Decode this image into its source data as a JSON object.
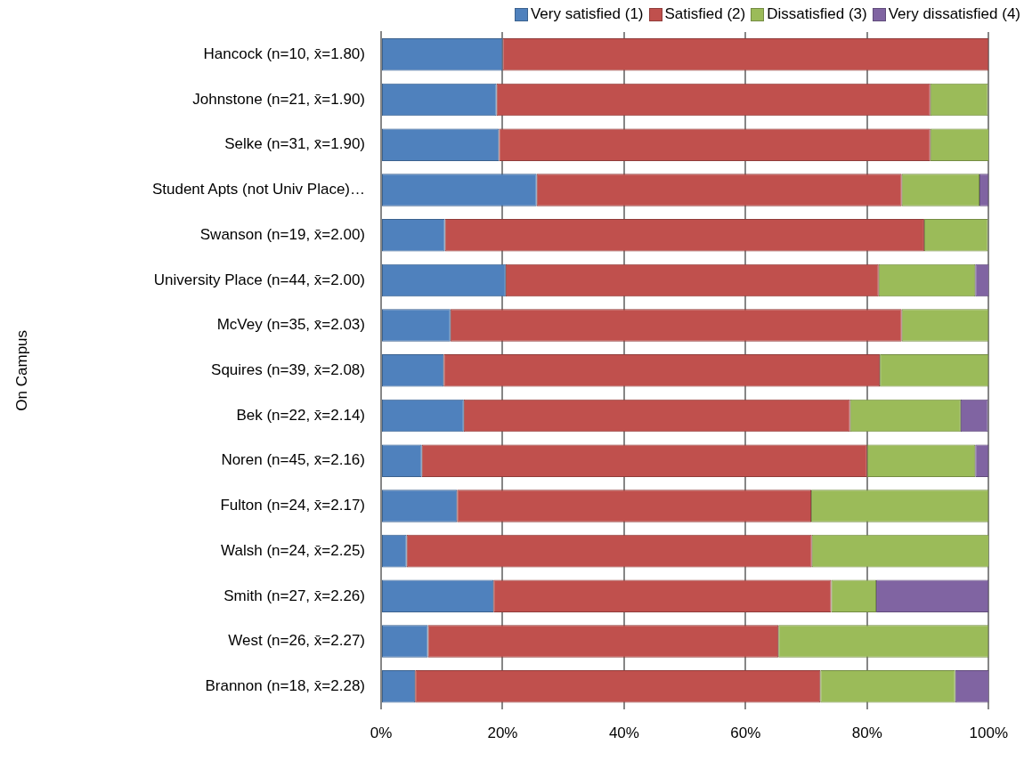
{
  "chart_data": {
    "type": "bar",
    "orientation": "horizontal",
    "stacked": true,
    "annotations": [
      "On Campus"
    ],
    "categories": [
      "Hancock (n=10, x̄=1.80)",
      "Johnstone (n=21, x̄=1.90)",
      "Selke (n=31, x̄=1.90)",
      "Student Apts (not Univ Place)…",
      "Swanson (n=19, x̄=2.00)",
      "University Place (n=44, x̄=2.00)",
      "McVey (n=35, x̄=2.03)",
      "Squires (n=39, x̄=2.08)",
      "Bek (n=22, x̄=2.14)",
      "Noren (n=45, x̄=2.16)",
      "Fulton (n=24, x̄=2.17)",
      "Walsh (n=24, x̄=2.25)",
      "Smith (n=27, x̄=2.26)",
      "West (n=26, x̄=2.27)",
      "Brannon (n=18, x̄=2.28)"
    ],
    "series": [
      {
        "name": "Very satisfied (1)",
        "color": "#4f81bd",
        "values": [
          20,
          19,
          19.4,
          25.6,
          10.5,
          20.5,
          11.4,
          10.3,
          13.6,
          6.7,
          12.5,
          4.2,
          18.5,
          7.7,
          5.6
        ]
      },
      {
        "name": "Satisfied (2)",
        "color": "#c0504d",
        "values": [
          80,
          71.4,
          71,
          60.1,
          78.9,
          61.4,
          74.3,
          71.8,
          63.6,
          73.3,
          58.3,
          66.7,
          55.6,
          57.7,
          66.7
        ]
      },
      {
        "name": "Dissatisfied (3)",
        "color": "#9bbb59",
        "values": [
          0,
          9.5,
          9.7,
          12.8,
          10.5,
          15.9,
          14.3,
          17.9,
          18.2,
          17.8,
          29.2,
          29.2,
          7.4,
          34.6,
          22.2
        ]
      },
      {
        "name": "Very dissatisfied (4)",
        "color": "#8064a2",
        "values": [
          0,
          0,
          0,
          1.5,
          0,
          2.3,
          0,
          0,
          4.5,
          2.2,
          0,
          0,
          18.5,
          0,
          5.6
        ]
      }
    ],
    "xlim": [
      0,
      100
    ],
    "xticks": [
      {
        "value": 0,
        "label": "0%"
      },
      {
        "value": 20,
        "label": "20%"
      },
      {
        "value": 40,
        "label": "40%"
      },
      {
        "value": 60,
        "label": "60%"
      },
      {
        "value": 80,
        "label": "80%"
      },
      {
        "value": 100,
        "label": "100%"
      }
    ],
    "grid": "x",
    "legend": "top right"
  }
}
